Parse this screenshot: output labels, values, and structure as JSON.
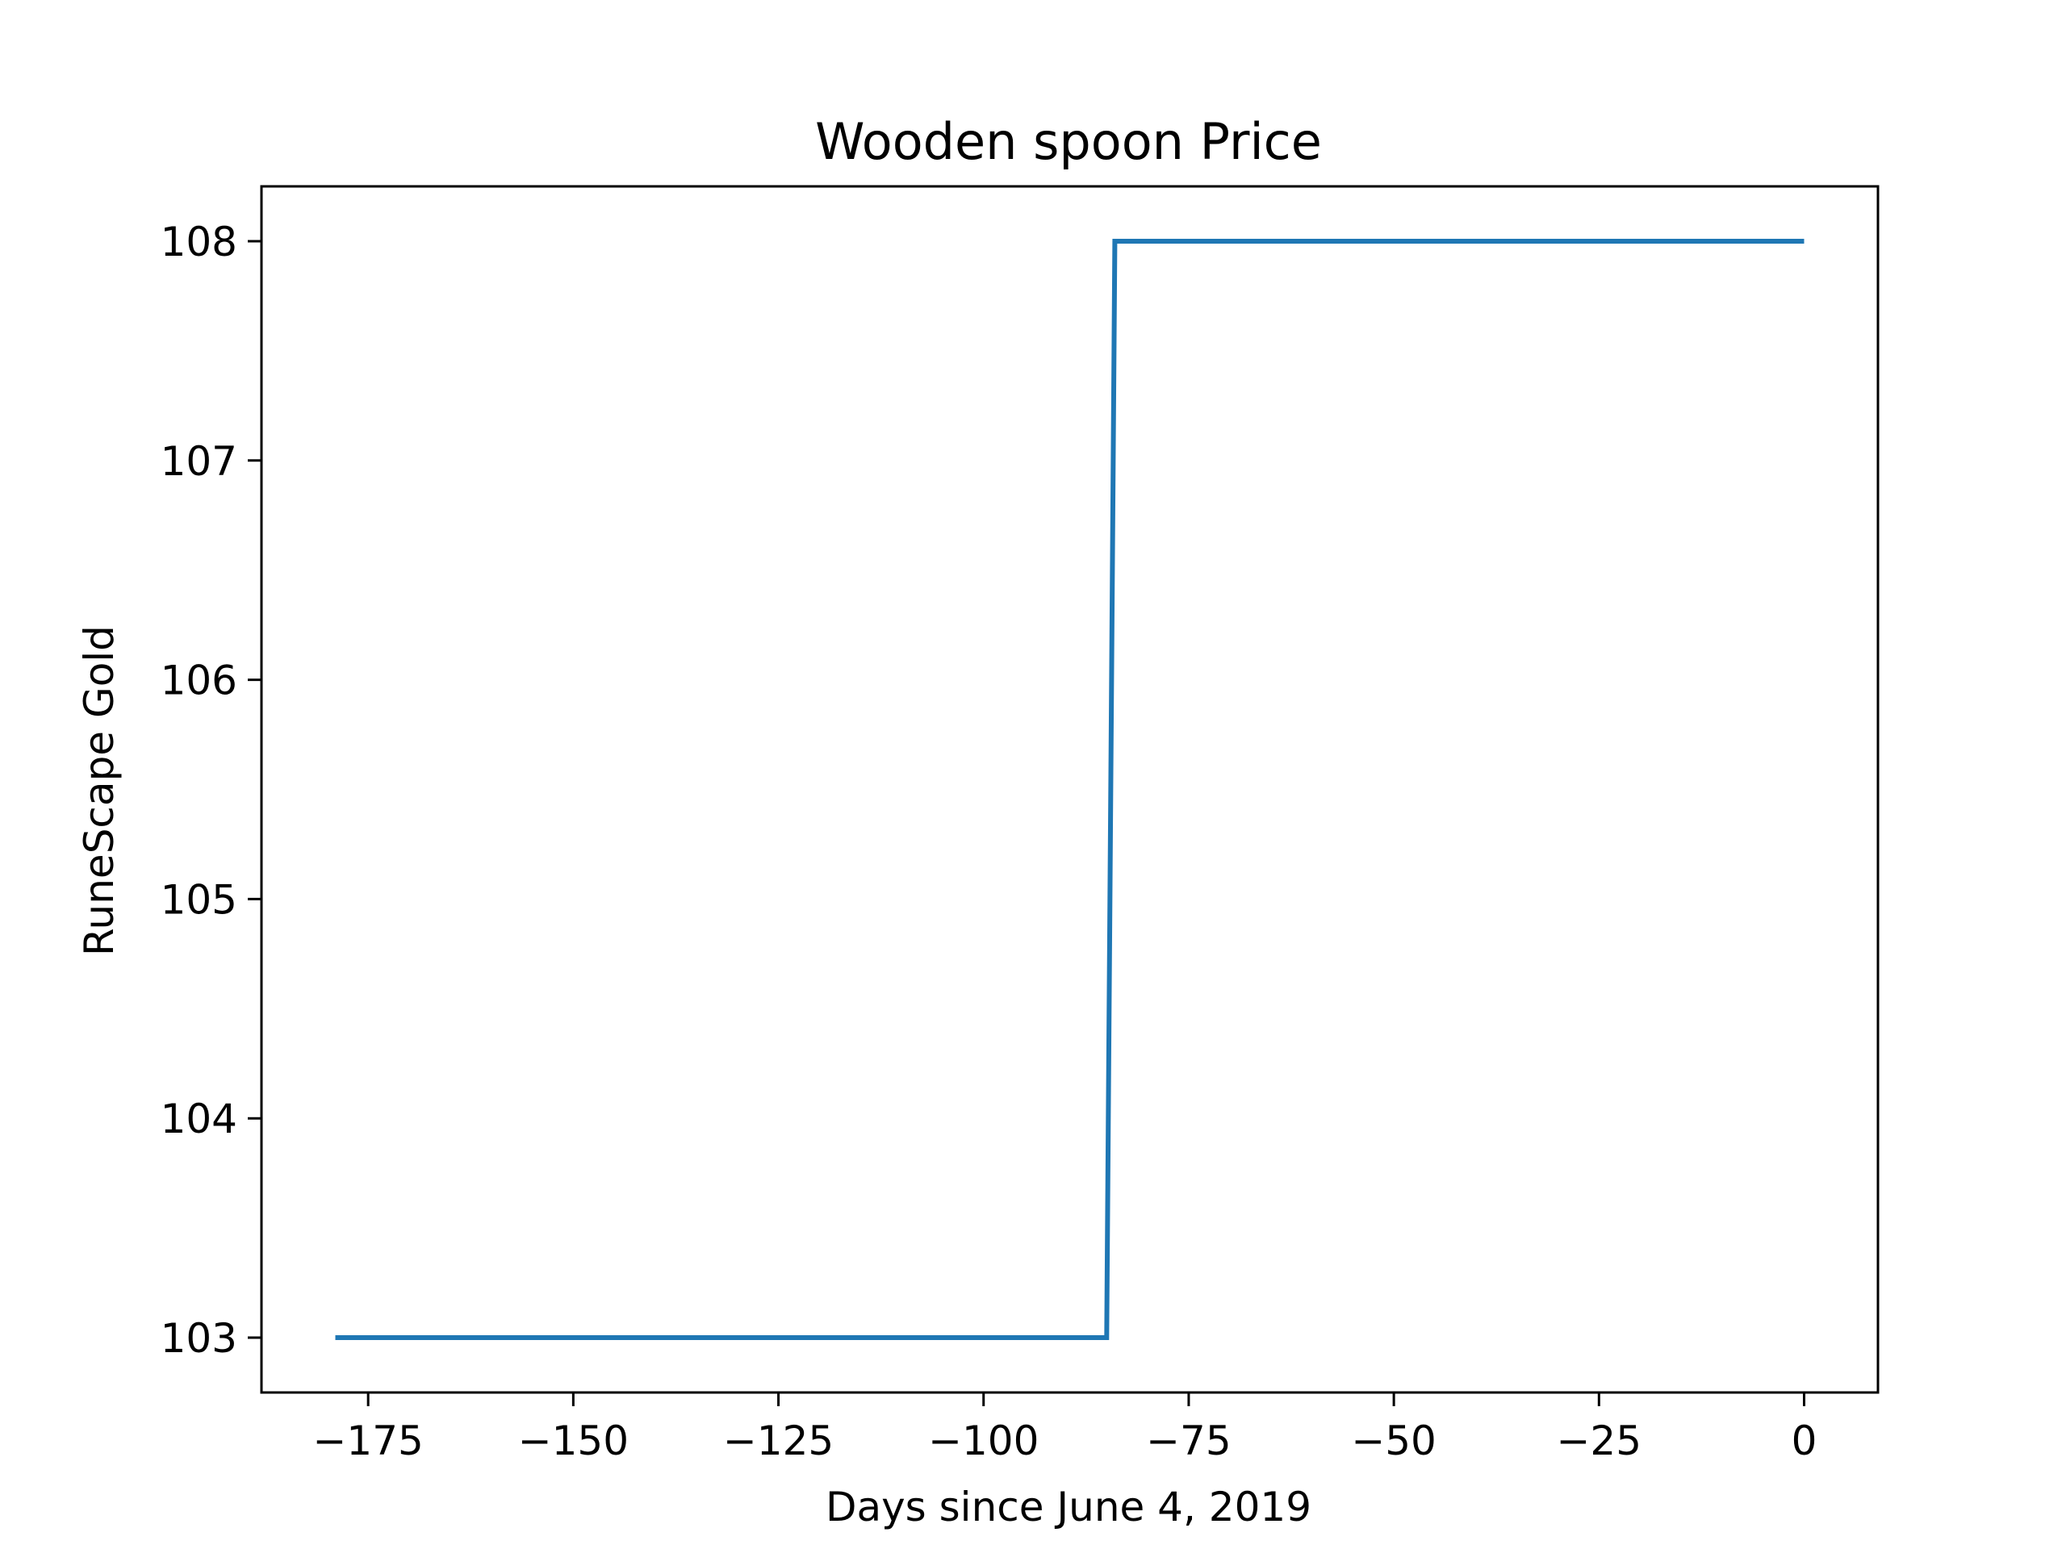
{
  "chart_data": {
    "type": "line",
    "title": "Wooden spoon Price",
    "xlabel": "Days since June 4, 2019",
    "ylabel": "RuneScape Gold",
    "xlim": [
      -188,
      9
    ],
    "ylim": [
      102.75,
      108.25
    ],
    "x_ticks": [
      -175,
      -150,
      -125,
      -100,
      -75,
      -50,
      -25,
      0
    ],
    "x_tick_labels": [
      "−175",
      "−150",
      "−125",
      "−100",
      "−75",
      "−50",
      "−25",
      "0"
    ],
    "y_ticks": [
      103,
      104,
      105,
      106,
      107,
      108
    ],
    "y_tick_labels": [
      "103",
      "104",
      "105",
      "106",
      "107",
      "108"
    ],
    "grid": false,
    "series": [
      {
        "color": "#1f77b4",
        "x": [
          -179,
          -85,
          -84,
          0
        ],
        "y": [
          103,
          103,
          108,
          108
        ]
      }
    ]
  }
}
